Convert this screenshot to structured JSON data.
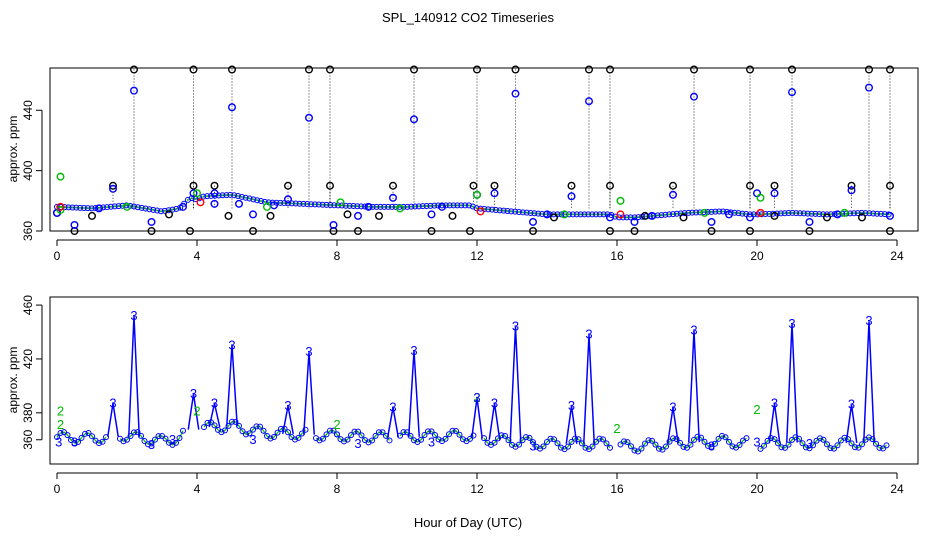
{
  "title": "SPL_140912  CO2 Timeseries",
  "xlabel": "Hour of Day (UTC)",
  "colors": {
    "black": "#000000",
    "blue": "#0000ff",
    "green": "#00bb00",
    "red": "#ff0000"
  },
  "chart_data": [
    {
      "type": "scatter",
      "ylabel": "approx. ppm",
      "xlim": [
        -0.2,
        24.6
      ],
      "ylim": [
        360,
        468
      ],
      "xticks": [
        "0",
        "4",
        "8",
        "12",
        "16",
        "20",
        "24"
      ],
      "yticks": [
        "360",
        "400",
        "440"
      ],
      "baseline": [
        [
          0,
          376
        ],
        [
          1,
          375
        ],
        [
          2,
          377
        ],
        [
          3,
          373
        ],
        [
          3.5,
          375
        ],
        [
          3.8,
          382
        ],
        [
          4,
          381
        ],
        [
          4.2,
          383
        ],
        [
          5,
          384
        ],
        [
          6,
          379
        ],
        [
          7,
          378
        ],
        [
          8,
          377
        ],
        [
          9,
          376
        ],
        [
          10,
          376
        ],
        [
          11,
          377
        ],
        [
          11.8,
          377
        ],
        [
          12,
          375
        ],
        [
          12.5,
          374
        ],
        [
          13,
          373
        ],
        [
          14,
          371
        ],
        [
          15,
          371
        ],
        [
          15.8,
          371
        ],
        [
          16,
          369
        ],
        [
          16.5,
          369
        ],
        [
          17,
          370
        ],
        [
          18,
          372
        ],
        [
          19,
          373
        ],
        [
          19.8,
          371
        ],
        [
          20,
          371
        ],
        [
          21,
          372
        ],
        [
          22,
          371
        ],
        [
          23,
          372
        ],
        [
          23.8,
          371
        ]
      ],
      "series": [
        {
          "name": "black",
          "values": [
            [
              2.2,
              467
            ],
            [
              3.9,
              467
            ],
            [
              5.0,
              467
            ],
            [
              7.2,
              467
            ],
            [
              7.8,
              467
            ],
            [
              10.2,
              467
            ],
            [
              12.0,
              467
            ],
            [
              13.1,
              467
            ],
            [
              15.2,
              467
            ],
            [
              15.8,
              467
            ],
            [
              18.2,
              467
            ],
            [
              19.8,
              467
            ],
            [
              21.0,
              467
            ],
            [
              23.2,
              467
            ],
            [
              23.8,
              467
            ],
            [
              1.6,
              390
            ],
            [
              3.9,
              390
            ],
            [
              4.5,
              390
            ],
            [
              6.6,
              390
            ],
            [
              7.8,
              390
            ],
            [
              9.6,
              390
            ],
            [
              11.9,
              390
            ],
            [
              12.5,
              390
            ],
            [
              14.7,
              390
            ],
            [
              15.8,
              390
            ],
            [
              17.6,
              390
            ],
            [
              19.8,
              390
            ],
            [
              20.5,
              390
            ],
            [
              22.7,
              390
            ],
            [
              23.8,
              390
            ],
            [
              0.5,
              360
            ],
            [
              2.7,
              360
            ],
            [
              3.8,
              360
            ],
            [
              5.6,
              360
            ],
            [
              7.9,
              360
            ],
            [
              8.6,
              360
            ],
            [
              10.7,
              360
            ],
            [
              11.8,
              360
            ],
            [
              13.6,
              360
            ],
            [
              15.8,
              360
            ],
            [
              16.5,
              360
            ],
            [
              18.7,
              360
            ],
            [
              19.8,
              360
            ],
            [
              21.5,
              360
            ],
            [
              23.8,
              360
            ],
            [
              0.0,
              372
            ],
            [
              1.0,
              370
            ],
            [
              3.2,
              371
            ],
            [
              4.9,
              370
            ],
            [
              6.1,
              370
            ],
            [
              8.3,
              371
            ],
            [
              9.2,
              370
            ],
            [
              11.3,
              370
            ],
            [
              14.2,
              369
            ],
            [
              16.8,
              370
            ],
            [
              17.9,
              369
            ],
            [
              20.5,
              370
            ],
            [
              22.0,
              369
            ],
            [
              23.0,
              369
            ]
          ]
        },
        {
          "name": "blue",
          "values": [
            [
              0.0,
              372
            ],
            [
              0.5,
              364
            ],
            [
              1.6,
              388
            ],
            [
              2.2,
              453
            ],
            [
              2.7,
              366
            ],
            [
              3.9,
              385
            ],
            [
              4.5,
              385
            ],
            [
              5.0,
              442
            ],
            [
              5.6,
              371
            ],
            [
              6.6,
              381
            ],
            [
              7.2,
              435
            ],
            [
              7.9,
              364
            ],
            [
              8.6,
              370
            ],
            [
              9.6,
              382
            ],
            [
              10.2,
              434
            ],
            [
              10.7,
              371
            ],
            [
              12.0,
              384
            ],
            [
              12.5,
              385
            ],
            [
              13.1,
              451
            ],
            [
              13.6,
              366
            ],
            [
              14.7,
              383
            ],
            [
              15.2,
              446
            ],
            [
              15.8,
              369
            ],
            [
              16.5,
              366
            ],
            [
              17.6,
              384
            ],
            [
              18.2,
              449
            ],
            [
              18.7,
              366
            ],
            [
              19.8,
              369
            ],
            [
              20.0,
              385
            ],
            [
              20.5,
              385
            ],
            [
              21.0,
              452
            ],
            [
              21.5,
              366
            ],
            [
              22.7,
              387
            ],
            [
              23.2,
              455
            ],
            [
              23.8,
              370
            ],
            [
              4.5,
              378
            ],
            [
              5.2,
              378
            ],
            [
              3.6,
              376
            ],
            [
              1.2,
              375
            ],
            [
              6.2,
              377
            ],
            [
              8.9,
              376
            ],
            [
              11.0,
              376
            ],
            [
              14.0,
              371
            ],
            [
              17.0,
              370
            ],
            [
              19.2,
              371
            ],
            [
              22.3,
              371
            ]
          ]
        },
        {
          "name": "green",
          "values": [
            [
              0.1,
              396
            ],
            [
              0.1,
              374
            ],
            [
              4.0,
              385
            ],
            [
              6.0,
              376
            ],
            [
              12.0,
              384
            ],
            [
              8.1,
              379
            ],
            [
              16.1,
              380
            ],
            [
              20.1,
              382
            ],
            [
              2.0,
              376
            ],
            [
              9.8,
              375
            ],
            [
              14.5,
              371
            ],
            [
              18.5,
              372
            ],
            [
              22.5,
              372
            ]
          ]
        },
        {
          "name": "red",
          "values": [
            [
              0.1,
              376
            ],
            [
              4.1,
              379
            ],
            [
              12.1,
              373
            ],
            [
              16.1,
              371
            ],
            [
              20.1,
              372
            ]
          ]
        }
      ]
    },
    {
      "type": "line",
      "ylabel": "approx. ppm",
      "xlim": [
        -0.2,
        24.6
      ],
      "ylim": [
        342,
        466
      ],
      "xticks": [
        "0",
        "4",
        "8",
        "12",
        "16",
        "20",
        "24"
      ],
      "yticks": [
        "360",
        "380",
        "420",
        "460"
      ],
      "series": [
        {
          "name": "2",
          "label": "2",
          "color": "green",
          "values": [
            [
              0.1,
              381
            ],
            [
              0.1,
              371
            ],
            [
              4.0,
              381
            ],
            [
              8.0,
              371
            ],
            [
              12.0,
              391
            ],
            [
              16.0,
              368
            ],
            [
              20.0,
              382
            ]
          ]
        },
        {
          "name": "3",
          "label": "3",
          "color": "blue",
          "values": [
            [
              0.05,
              358
            ],
            [
              0.5,
              358
            ],
            [
              1.6,
              387
            ],
            [
              2.2,
              452
            ],
            [
              2.7,
              356
            ],
            [
              3.3,
              360
            ],
            [
              3.9,
              394
            ],
            [
              4.5,
              387
            ],
            [
              5.0,
              430
            ],
            [
              5.6,
              360
            ],
            [
              6.6,
              385
            ],
            [
              7.2,
              425
            ],
            [
              8.6,
              357
            ],
            [
              9.6,
              384
            ],
            [
              10.2,
              426
            ],
            [
              10.7,
              358
            ],
            [
              12.0,
              391
            ],
            [
              12.5,
              387
            ],
            [
              13.1,
              444
            ],
            [
              13.6,
              355
            ],
            [
              14.7,
              385
            ],
            [
              15.2,
              438
            ],
            [
              17.6,
              384
            ],
            [
              18.2,
              441
            ],
            [
              18.7,
              355
            ],
            [
              20.0,
              358
            ],
            [
              20.5,
              387
            ],
            [
              21.0,
              446
            ],
            [
              21.5,
              357
            ],
            [
              22.7,
              386
            ],
            [
              23.2,
              448
            ]
          ]
        }
      ],
      "segments": [
        [
          0,
          1.5
        ],
        [
          1.8,
          3.7
        ],
        [
          4.2,
          7.1
        ],
        [
          7.4,
          8.0
        ],
        [
          8.0,
          9.5
        ],
        [
          9.8,
          11.9
        ],
        [
          12.2,
          15.8
        ],
        [
          16.1,
          19.8
        ],
        [
          20.1,
          23.8
        ]
      ]
    }
  ]
}
